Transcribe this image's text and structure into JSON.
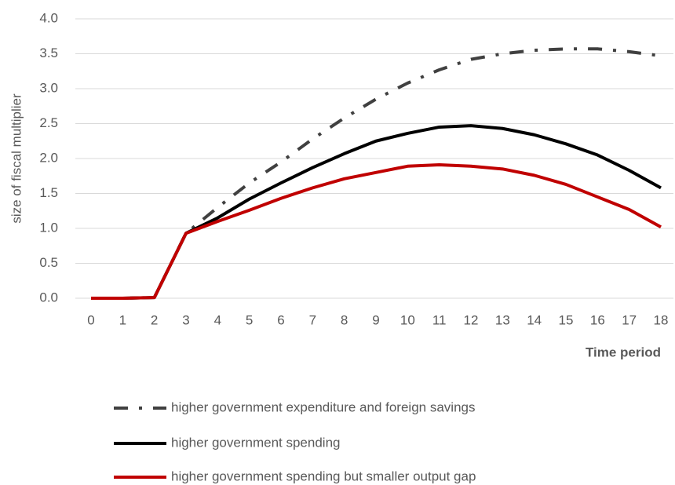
{
  "chart_data": {
    "type": "line",
    "y_label": "size of fiscal multiplier",
    "x_label": "Time period",
    "categories": [
      "0",
      "1",
      "2",
      "3",
      "4",
      "5",
      "6",
      "7",
      "8",
      "9",
      "10",
      "11",
      "12",
      "13",
      "14",
      "15",
      "16",
      "17",
      "18"
    ],
    "ylim": [
      0,
      4
    ],
    "yticks": [
      {
        "value": 0,
        "label": "0.0"
      },
      {
        "value": 0.5,
        "label": "0.5"
      },
      {
        "value": 1,
        "label": "1.0"
      },
      {
        "value": 1.5,
        "label": "1.5"
      },
      {
        "value": 2,
        "label": "2.0"
      },
      {
        "value": 2.5,
        "label": "2.5"
      },
      {
        "value": 3,
        "label": "3.0"
      },
      {
        "value": 3.5,
        "label": "3.5"
      },
      {
        "value": 4,
        "label": "4.0"
      }
    ],
    "grid": true,
    "legend": "bottom",
    "series": [
      {
        "name": "higher government expenditure and foreign savings",
        "color": "#404040",
        "line_style": "dash-dot",
        "values": [
          0,
          0,
          0.01,
          0.93,
          1.3,
          1.65,
          1.95,
          2.28,
          2.58,
          2.85,
          3.08,
          3.27,
          3.42,
          3.5,
          3.55,
          3.57,
          3.57,
          3.53,
          3.47
        ]
      },
      {
        "name": "higher government spending",
        "color": "#000000",
        "line_style": "solid",
        "values": [
          0,
          0,
          0.01,
          0.93,
          1.15,
          1.42,
          1.65,
          1.87,
          2.07,
          2.25,
          2.36,
          2.45,
          2.47,
          2.43,
          2.34,
          2.21,
          2.05,
          1.83,
          1.58
        ]
      },
      {
        "name": "higher government spending but smaller output gap",
        "color": "#c00000",
        "line_style": "solid",
        "values": [
          0,
          0,
          0.01,
          0.93,
          1.1,
          1.26,
          1.43,
          1.58,
          1.71,
          1.8,
          1.89,
          1.91,
          1.89,
          1.85,
          1.76,
          1.63,
          1.45,
          1.27,
          1.02
        ]
      }
    ]
  }
}
